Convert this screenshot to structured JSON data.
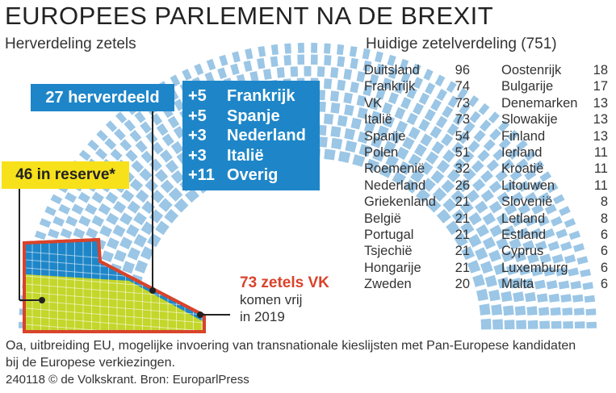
{
  "title": "EUROPEES PARLEMENT NA DE BREXIT",
  "subtitle_left": "Herverdeling zetels",
  "subtitle_right": "Huidige zetelverdeling (751)",
  "labels": {
    "redistributed": "27 herverdeeld",
    "reserve": "46 in reserve*",
    "vk_head": "73 zetels VK",
    "vk_line2": "komen vrij",
    "vk_line3": "in 2019"
  },
  "footnote": "Oa, uitbreiding EU, mogelijke invoering van transnationale kieslijsten met Pan-Europese kandidaten bij de Europese verkiezingen.",
  "credit": "240118 © de Volkskrant. Bron: EuroparlPress",
  "colors": {
    "seat": "#9bc6e6",
    "blue": "#1e86c8",
    "yellow": "#f7e11a",
    "red": "#d9432b",
    "green": "#c3d62a"
  },
  "chart_data": [
    {
      "type": "table",
      "title": "Huidige zetelverdeling (751)",
      "total": 751,
      "rows": [
        {
          "country": "Duitsland",
          "seats": 96
        },
        {
          "country": "Frankrijk",
          "seats": 74
        },
        {
          "country": "VK",
          "seats": 73
        },
        {
          "country": "Italië",
          "seats": 73
        },
        {
          "country": "Spanje",
          "seats": 54
        },
        {
          "country": "Polen",
          "seats": 51
        },
        {
          "country": "Roemenië",
          "seats": 32
        },
        {
          "country": "Nederland",
          "seats": 26
        },
        {
          "country": "Griekenland",
          "seats": 21
        },
        {
          "country": "België",
          "seats": 21
        },
        {
          "country": "Portugal",
          "seats": 21
        },
        {
          "country": "Tsjechië",
          "seats": 21
        },
        {
          "country": "Hongarije",
          "seats": 21
        },
        {
          "country": "Zweden",
          "seats": 20
        },
        {
          "country": "Oostenrijk",
          "seats": 18
        },
        {
          "country": "Bulgarije",
          "seats": 17
        },
        {
          "country": "Denemarken",
          "seats": 13
        },
        {
          "country": "Slowakije",
          "seats": 13
        },
        {
          "country": "Finland",
          "seats": 13
        },
        {
          "country": "Ierland",
          "seats": 11
        },
        {
          "country": "Kroatië",
          "seats": 11
        },
        {
          "country": "Litouwen",
          "seats": 11
        },
        {
          "country": "Slovenië",
          "seats": 8
        },
        {
          "country": "Letland",
          "seats": 8
        },
        {
          "country": "Estland",
          "seats": 6
        },
        {
          "country": "Cyprus",
          "seats": 6
        },
        {
          "country": "Luxemburg",
          "seats": 6
        },
        {
          "country": "Malta",
          "seats": 6
        }
      ]
    },
    {
      "type": "table",
      "title": "Herverdeling zetels",
      "vk_seats_freed": 73,
      "redistributed": 27,
      "reserve": 46,
      "gains": [
        {
          "label": "+5",
          "value": 5,
          "country": "Frankrijk"
        },
        {
          "label": "+5",
          "value": 5,
          "country": "Spanje"
        },
        {
          "label": "+3",
          "value": 3,
          "country": "Nederland"
        },
        {
          "label": "+3",
          "value": 3,
          "country": "Italië"
        },
        {
          "label": "+11",
          "value": 11,
          "country": "Overig"
        }
      ]
    }
  ]
}
